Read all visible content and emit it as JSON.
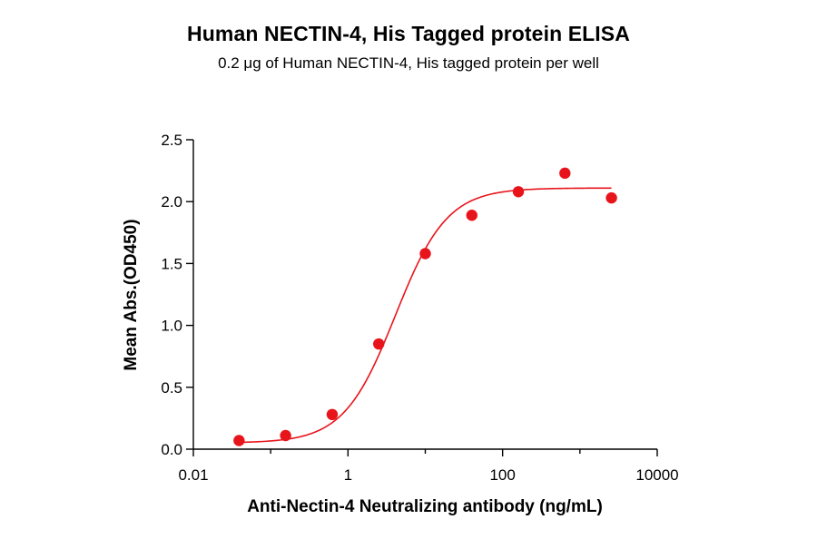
{
  "chart_data": {
    "type": "scatter",
    "title": "Human NECTIN-4, His Tagged protein ELISA",
    "subtitle": "0.2 μg of Human NECTIN-4, His tagged protein per well",
    "xlabel": "Anti-Nectin-4 Neutralizing antibody (ng/mL)",
    "ylabel": "Mean Abs.(OD450)",
    "x_scale": "log",
    "xlim": [
      0.01,
      10000
    ],
    "ylim": [
      0,
      2.5
    ],
    "x_ticks": [
      0.01,
      1,
      100,
      10000
    ],
    "x_tick_labels": [
      "0.01",
      "1",
      "100",
      "10000"
    ],
    "y_ticks": [
      0.0,
      0.5,
      1.0,
      1.5,
      2.0,
      2.5
    ],
    "y_tick_labels": [
      "0.0",
      "0.5",
      "1.0",
      "1.5",
      "2.0",
      "2.5"
    ],
    "points": {
      "x": [
        0.039,
        0.156,
        0.625,
        2.5,
        10,
        40,
        160,
        640,
        2560
      ],
      "y": [
        0.07,
        0.11,
        0.28,
        0.85,
        1.58,
        1.89,
        2.08,
        2.23,
        2.03
      ]
    },
    "fit": {
      "model": "4PL",
      "bottom": 0.05,
      "top": 2.11,
      "ec50": 4.1,
      "hill": 1.3
    },
    "color": "#e8141b",
    "grid": false,
    "legend": "none"
  }
}
